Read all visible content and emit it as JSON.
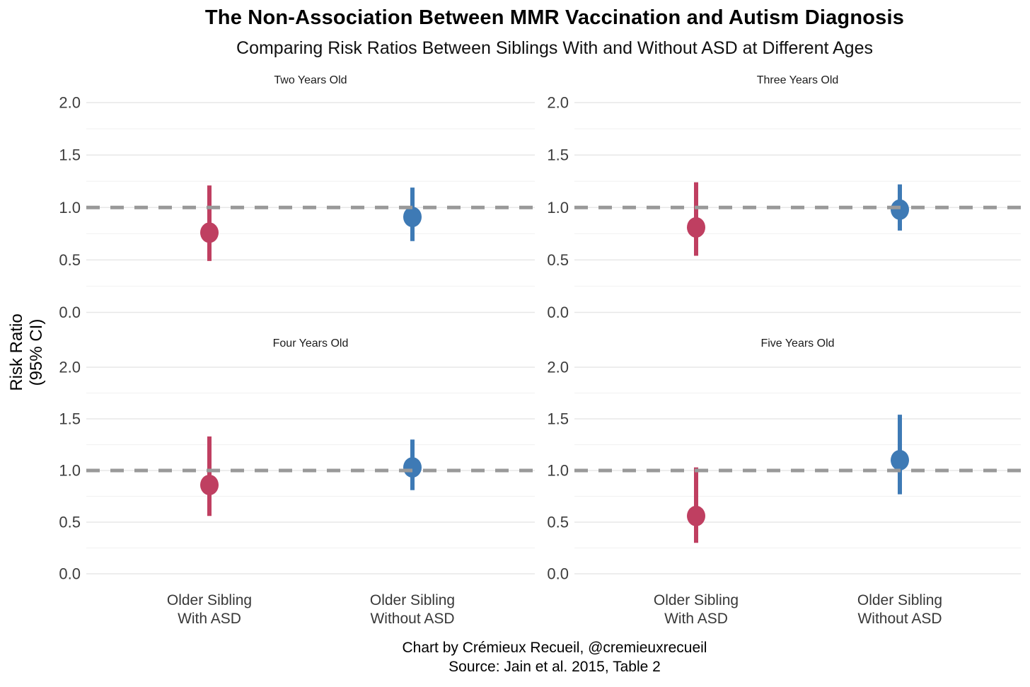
{
  "chart_data": {
    "type": "scatter",
    "title": "The Non-Association Between MMR Vaccination and Autism Diagnosis",
    "subtitle": "Comparing Risk Ratios Between Siblings With and Without ASD at Different Ages",
    "ylabel_lines": [
      "Risk Ratio",
      "(95% CI)"
    ],
    "caption_lines": [
      "Chart by Crémieux Recueil, @cremieuxrecueil",
      "Source: Jain et al. 2015, Table 2"
    ],
    "categories": [
      "Older Sibling With ASD",
      "Older Sibling Without ASD"
    ],
    "category_label_lines": [
      [
        "Older Sibling",
        "With ASD"
      ],
      [
        "Older Sibling",
        "Without ASD"
      ]
    ],
    "ylim": [
      0,
      2
    ],
    "y_major_ticks": [
      2.0,
      1.5,
      1.0,
      0.5,
      0.0
    ],
    "y_tick_labels": [
      "2.0",
      "1.5",
      "1.0",
      "0.5",
      "0.0"
    ],
    "y_minor_ticks": [
      1.75,
      1.25,
      0.75,
      0.25
    ],
    "reference_line_y": 1.0,
    "grid": true,
    "legend_position": "none",
    "colors": {
      "older_sibling_with_asd": "#bf3f61",
      "older_sibling_without_asd": "#3e7ab5",
      "reference_line": "#999999",
      "grid_major": "#e7e7e7",
      "grid_minor": "#f2f2f2",
      "tick_text": "#3d3d3d",
      "facet_text": "#1c1c1c"
    },
    "facets": [
      {
        "label": "Two Years Old",
        "series": [
          {
            "category": "Older Sibling With ASD",
            "risk_ratio": 0.76,
            "ci_low": 0.49,
            "ci_high": 1.21
          },
          {
            "category": "Older Sibling Without ASD",
            "risk_ratio": 0.91,
            "ci_low": 0.68,
            "ci_high": 1.19
          }
        ]
      },
      {
        "label": "Three Years Old",
        "series": [
          {
            "category": "Older Sibling With ASD",
            "risk_ratio": 0.81,
            "ci_low": 0.54,
            "ci_high": 1.24
          },
          {
            "category": "Older Sibling Without ASD",
            "risk_ratio": 0.98,
            "ci_low": 0.78,
            "ci_high": 1.22
          }
        ]
      },
      {
        "label": "Four Years Old",
        "series": [
          {
            "category": "Older Sibling With ASD",
            "risk_ratio": 0.86,
            "ci_low": 0.56,
            "ci_high": 1.33
          },
          {
            "category": "Older Sibling Without ASD",
            "risk_ratio": 1.03,
            "ci_low": 0.81,
            "ci_high": 1.3
          }
        ]
      },
      {
        "label": "Five Years Old",
        "series": [
          {
            "category": "Older Sibling With ASD",
            "risk_ratio": 0.56,
            "ci_low": 0.3,
            "ci_high": 1.03
          },
          {
            "category": "Older Sibling Without ASD",
            "risk_ratio": 1.1,
            "ci_low": 0.77,
            "ci_high": 1.54
          }
        ]
      }
    ]
  }
}
